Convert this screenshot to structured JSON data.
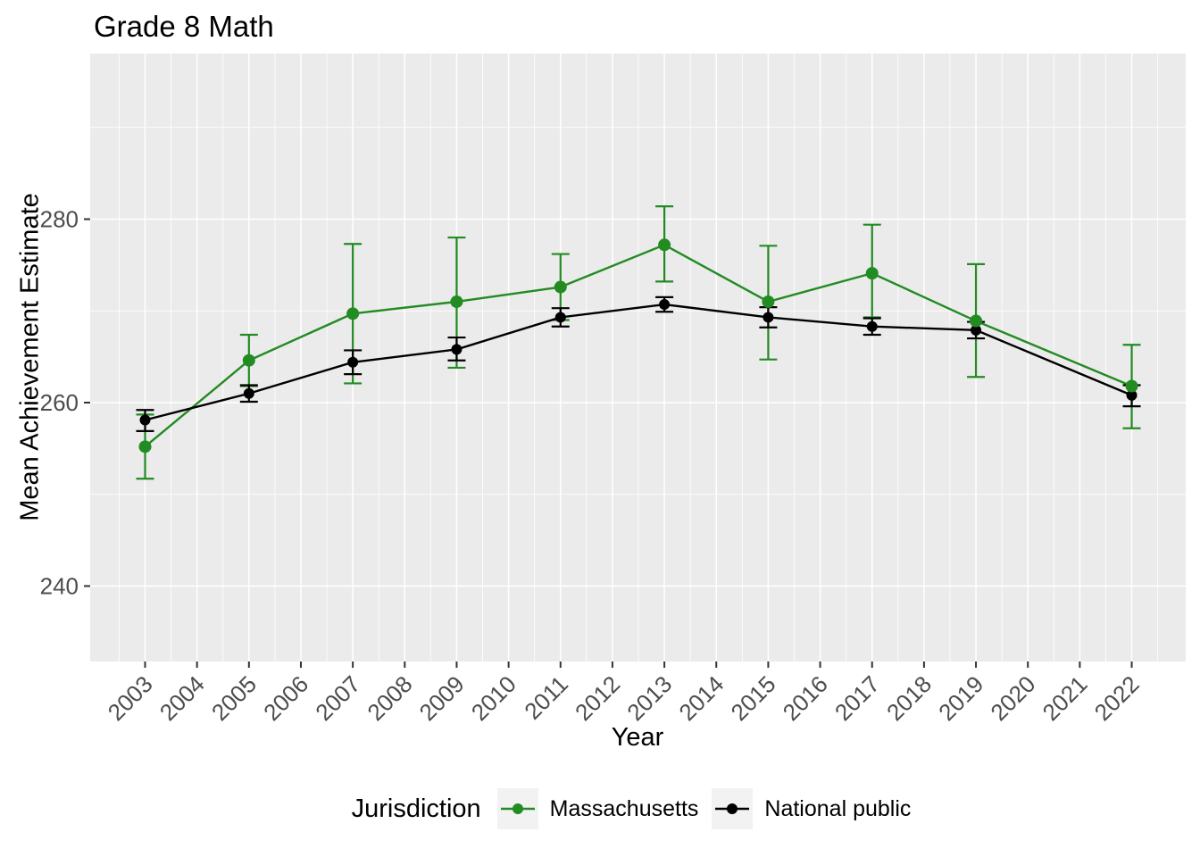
{
  "title": "Grade 8 Math",
  "y_axis": {
    "label": "Mean Achievement Estimate"
  },
  "x_axis": {
    "label": "Year"
  },
  "legend": {
    "title": "Jurisdiction",
    "items": [
      {
        "label": "Massachusetts",
        "color": "#228B22"
      },
      {
        "label": "National public",
        "color": "#000000"
      }
    ]
  },
  "colors": {
    "plot_bg": "#FFFFFF",
    "panel_bg": "#EBEBEB",
    "grid": "#FFFFFF",
    "tick_mark": "#333333",
    "tick_text": "#4D4D4D",
    "legend_key_bg": "#F2F2F2",
    "massachusetts": "#228B22",
    "national_public": "#000000"
  },
  "chart_data": {
    "type": "line",
    "title": "Grade 8 Math",
    "xlabel": "Year",
    "ylabel": "Mean Achievement Estimate",
    "x_ticks": [
      2003,
      2004,
      2005,
      2006,
      2007,
      2008,
      2009,
      2010,
      2011,
      2012,
      2013,
      2014,
      2015,
      2016,
      2017,
      2018,
      2019,
      2020,
      2021,
      2022
    ],
    "y_ticks": [
      240,
      260,
      280
    ],
    "ylim": [
      231.7,
      298.0
    ],
    "xlim": [
      2001.95,
      2023.05
    ],
    "grid": true,
    "legend_position": "bottom",
    "error_bars": true,
    "series": [
      {
        "name": "Massachusetts",
        "color": "#228B22",
        "x": [
          2003,
          2005,
          2007,
          2009,
          2011,
          2013,
          2015,
          2017,
          2019,
          2022
        ],
        "y": [
          255.2,
          264.6,
          269.7,
          271.0,
          272.6,
          277.2,
          271.0,
          274.1,
          268.9,
          261.8
        ],
        "ci_low": [
          251.7,
          261.8,
          262.1,
          263.8,
          269.0,
          273.2,
          264.7,
          269.3,
          262.8,
          257.2
        ],
        "ci_high": [
          258.7,
          267.4,
          277.3,
          278.0,
          276.2,
          281.4,
          277.1,
          279.4,
          275.1,
          266.3
        ]
      },
      {
        "name": "National public",
        "color": "#000000",
        "x": [
          2003,
          2005,
          2007,
          2009,
          2011,
          2013,
          2015,
          2017,
          2019,
          2022
        ],
        "y": [
          258.1,
          261.0,
          264.4,
          265.8,
          269.3,
          270.7,
          269.3,
          268.3,
          267.9,
          260.8
        ],
        "ci_low": [
          256.9,
          260.1,
          263.1,
          264.6,
          268.3,
          269.9,
          268.2,
          267.4,
          267.0,
          259.6
        ],
        "ci_high": [
          259.2,
          261.9,
          265.7,
          267.1,
          270.3,
          271.5,
          270.4,
          269.2,
          268.8,
          261.9
        ]
      }
    ]
  }
}
